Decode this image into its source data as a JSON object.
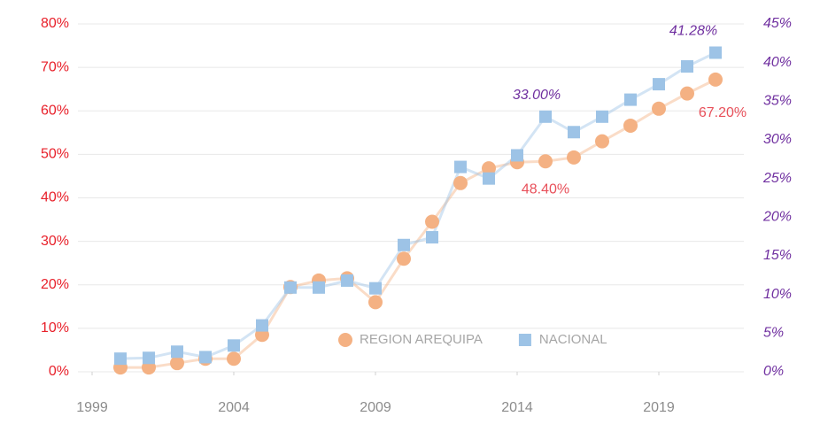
{
  "chart_data": {
    "type": "line",
    "x": [
      2000,
      2001,
      2002,
      2003,
      2004,
      2005,
      2006,
      2007,
      2008,
      2009,
      2010,
      2011,
      2012,
      2013,
      2014,
      2015,
      2016,
      2017,
      2018,
      2019,
      2020,
      2021
    ],
    "xlim": [
      1998.5,
      2022
    ],
    "xticks": [
      1999,
      2004,
      2009,
      2014,
      2019
    ],
    "ylim": [
      0,
      80
    ],
    "yticks": [
      {
        "value": 0,
        "label": "0%"
      },
      {
        "value": 10,
        "label": "10%"
      },
      {
        "value": 20,
        "label": "20%"
      },
      {
        "value": 30,
        "label": "30%"
      },
      {
        "value": 40,
        "label": "40%"
      },
      {
        "value": 50,
        "label": "50%"
      },
      {
        "value": 60,
        "label": "60%"
      },
      {
        "value": 70,
        "label": "70%"
      },
      {
        "value": 80,
        "label": "80%"
      }
    ],
    "y2lim": [
      0,
      45
    ],
    "y2ticks": [
      {
        "value": 0,
        "label": "0%"
      },
      {
        "value": 5,
        "label": "5%"
      },
      {
        "value": 10,
        "label": "10%"
      },
      {
        "value": 15,
        "label": "15%"
      },
      {
        "value": 20,
        "label": "20%"
      },
      {
        "value": 25,
        "label": "25%"
      },
      {
        "value": 30,
        "label": "30%"
      },
      {
        "value": 35,
        "label": "35%"
      },
      {
        "value": 40,
        "label": "40%"
      },
      {
        "value": 45,
        "label": "45%"
      }
    ],
    "grid": true,
    "legend": "bottom",
    "series": [
      {
        "name": "REGION AREQUIPA",
        "color": "#f4b183",
        "marker": "circle",
        "values": [
          1,
          1,
          2,
          3,
          3,
          8.5,
          19.5,
          21,
          21.5,
          16,
          26,
          34.5,
          43.4,
          46.8,
          48.2,
          48.4,
          49.3,
          53,
          56.6,
          60.5,
          64,
          67.2
        ],
        "value_labels": [
          null,
          null,
          null,
          null,
          null,
          null,
          null,
          null,
          null,
          null,
          null,
          null,
          null,
          null,
          null,
          "48.40%",
          null,
          null,
          null,
          null,
          null,
          "67.20%"
        ],
        "label_color": "#e8505a"
      },
      {
        "name": "NACIONAL",
        "color": "#9dc3e6",
        "marker": "square",
        "axis": "y2",
        "values": [
          1.7,
          1.8,
          2.6,
          1.9,
          3.4,
          6,
          10.9,
          10.9,
          11.8,
          10.8,
          16.4,
          17.4,
          26.5,
          25,
          28,
          33,
          31,
          33,
          35.2,
          37.2,
          39.5,
          41.28
        ],
        "value_labels": [
          null,
          null,
          null,
          null,
          null,
          null,
          null,
          null,
          null,
          null,
          null,
          null,
          null,
          null,
          null,
          "33.00%",
          null,
          null,
          null,
          null,
          null,
          "41.28%"
        ],
        "label_color": "#7030a0"
      }
    ]
  }
}
